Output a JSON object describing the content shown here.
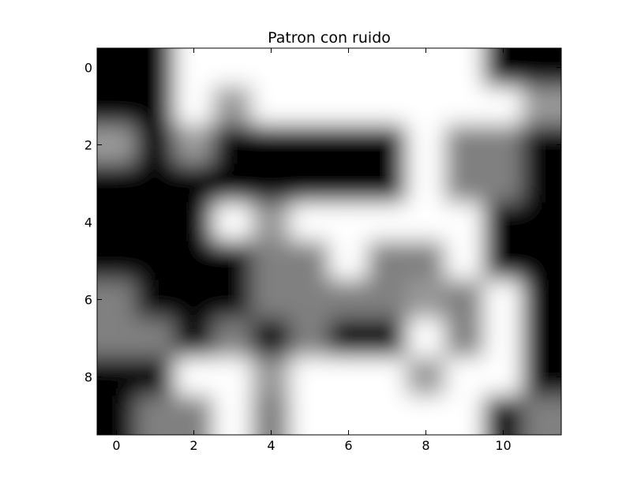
{
  "chart_data": {
    "type": "heatmap",
    "title": "Patron con ruido",
    "xlabel": "",
    "ylabel": "",
    "colormap": "gray",
    "interpolation": "bilinear",
    "x_ticks": [
      "0",
      "2",
      "4",
      "6",
      "8",
      "10"
    ],
    "y_ticks": [
      "0",
      "2",
      "4",
      "6",
      "8"
    ],
    "xlim": [
      -0.5,
      11.5
    ],
    "ylim": [
      9.5,
      -0.5
    ],
    "vmin": 0,
    "vmax": 1,
    "grid": false,
    "values": [
      [
        0,
        0,
        1,
        1,
        1,
        1,
        1,
        1,
        1,
        1,
        0,
        0
      ],
      [
        0,
        0,
        1,
        0.6,
        1,
        1,
        1,
        1,
        1,
        1,
        1,
        0.6
      ],
      [
        0.6,
        0,
        0.6,
        0,
        0,
        0,
        0,
        0,
        1,
        0.5,
        0.5,
        0
      ],
      [
        0,
        0,
        0,
        0,
        0,
        0,
        0,
        0,
        1,
        0.5,
        0.5,
        0
      ],
      [
        0,
        0,
        0,
        1,
        0.6,
        1,
        1,
        1,
        1,
        1,
        0,
        0
      ],
      [
        0,
        0,
        0,
        0,
        0.5,
        0.5,
        1,
        0.5,
        0.5,
        1,
        0,
        0
      ],
      [
        0.5,
        0,
        0,
        0,
        0.5,
        0.5,
        0.5,
        0.5,
        0.6,
        0.5,
        1,
        0
      ],
      [
        0.5,
        0.5,
        0,
        0.5,
        0,
        0.5,
        0,
        0,
        1,
        0.5,
        1,
        0
      ],
      [
        0,
        0,
        1,
        1,
        0.6,
        1,
        1,
        1,
        0.6,
        1,
        1,
        0
      ],
      [
        0,
        0.5,
        0.5,
        1,
        0.5,
        1,
        1,
        1,
        1,
        1,
        0,
        0.5
      ]
    ]
  }
}
